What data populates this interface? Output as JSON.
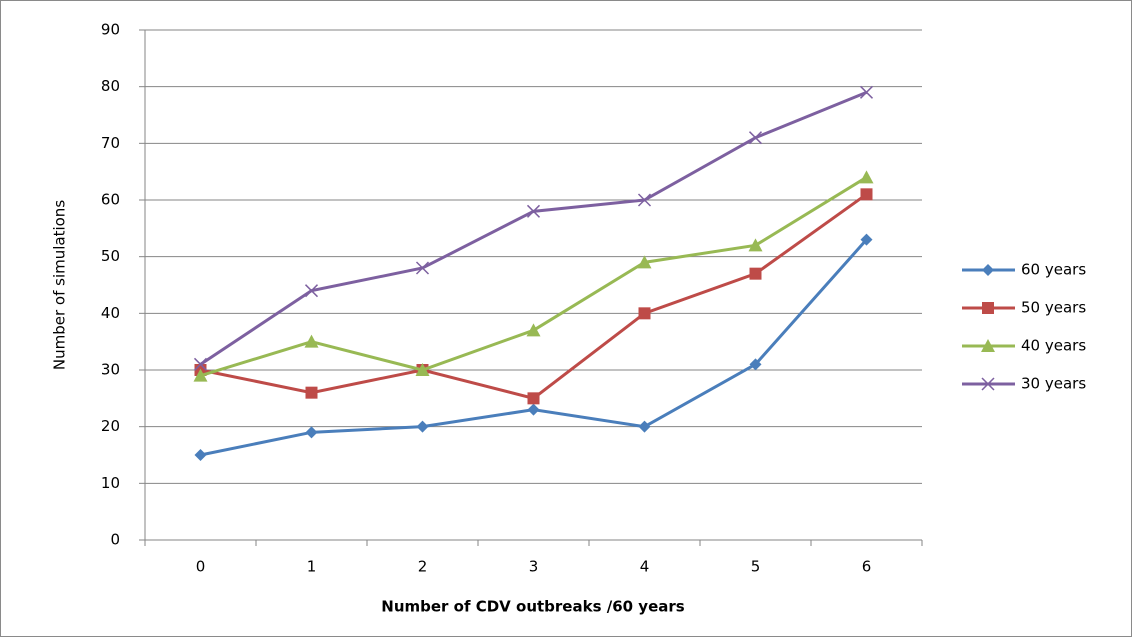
{
  "chart_data": {
    "type": "line",
    "x_label": "Number of CDV outbreaks /60 years",
    "y_label": "Number of simulations",
    "categories": [
      "0",
      "1",
      "2",
      "3",
      "4",
      "5",
      "6"
    ],
    "series": [
      {
        "name": "60 years",
        "color": "#4a7ebb",
        "marker": "diamond",
        "values": [
          15,
          19,
          20,
          23,
          20,
          31,
          53
        ]
      },
      {
        "name": "50 years",
        "color": "#be4b48",
        "marker": "square",
        "values": [
          30,
          26,
          30,
          25,
          40,
          47,
          61
        ]
      },
      {
        "name": "40 years",
        "color": "#98b954",
        "marker": "triangle",
        "values": [
          29,
          35,
          30,
          37,
          49,
          52,
          64
        ]
      },
      {
        "name": "30 years",
        "color": "#7d60a0",
        "marker": "x",
        "values": [
          31,
          44,
          48,
          58,
          60,
          71,
          79
        ]
      }
    ],
    "ylim": [
      0,
      90
    ],
    "yticks": [
      0,
      10,
      20,
      30,
      40,
      50,
      60,
      70,
      80,
      90
    ],
    "grid": true,
    "legend": "right"
  }
}
